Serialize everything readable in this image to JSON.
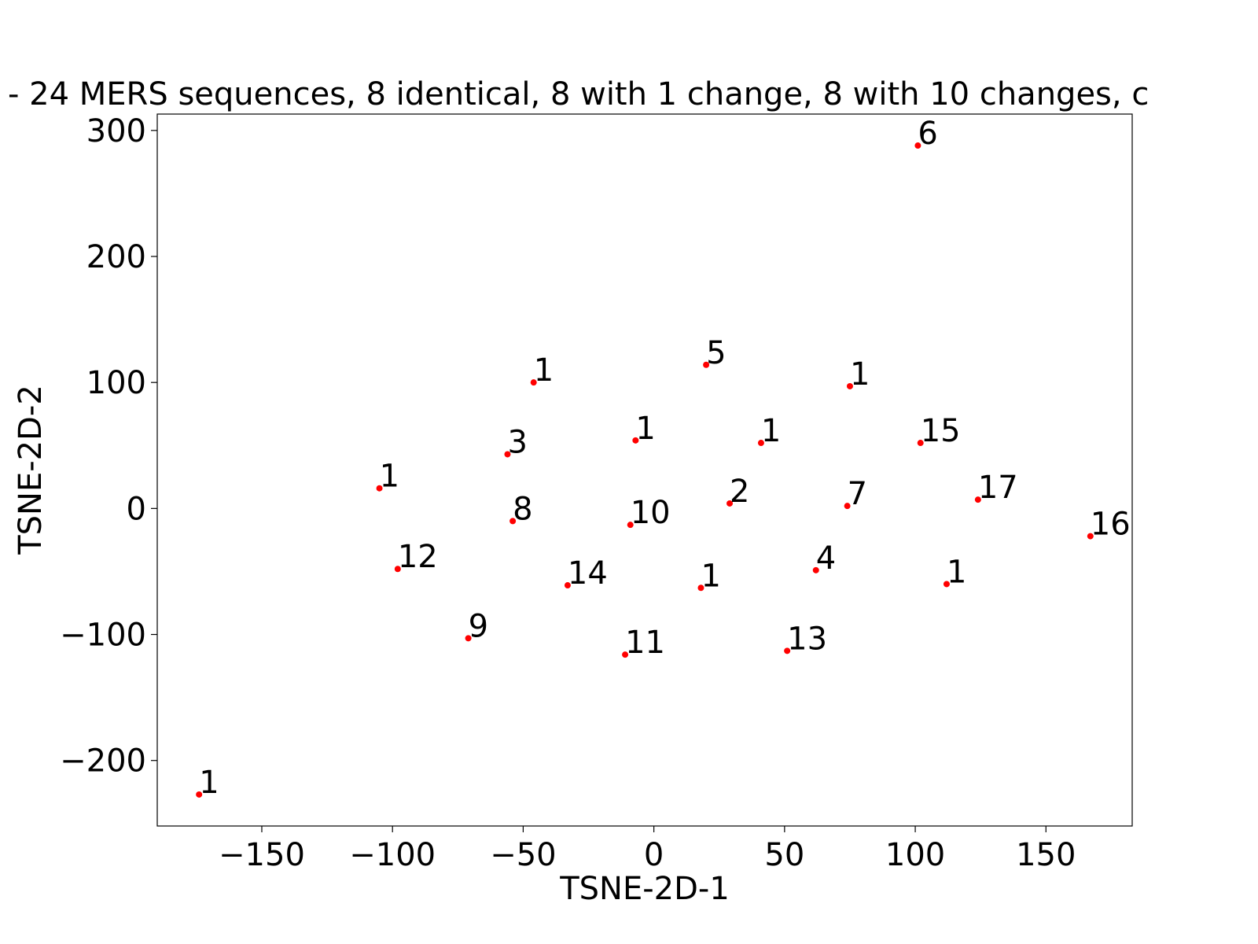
{
  "chart_data": {
    "type": "scatter",
    "title": "- 24 MERS sequences, 8 identical, 8 with 1 change, 8 with 10 changes, c",
    "xlabel": "TSNE-2D-1",
    "ylabel": "TSNE-2D-2",
    "xlim": [
      -190,
      183
    ],
    "ylim": [
      -252,
      313
    ],
    "xticks": [
      -150,
      -100,
      -50,
      0,
      50,
      100,
      150
    ],
    "yticks": [
      -200,
      -100,
      0,
      100,
      200,
      300
    ],
    "xtick_labels": [
      "−150",
      "−100",
      "−50",
      "0",
      "50",
      "100",
      "150"
    ],
    "ytick_labels": [
      "−200",
      "−100",
      "0",
      "100",
      "200",
      "300"
    ],
    "grid": false,
    "point_color": "#ff0000",
    "points": [
      {
        "x": 101,
        "y": 288,
        "label": "6"
      },
      {
        "x": 20,
        "y": 114,
        "label": "5"
      },
      {
        "x": -46,
        "y": 100,
        "label": "1"
      },
      {
        "x": 75,
        "y": 97,
        "label": "1"
      },
      {
        "x": -7,
        "y": 54,
        "label": "1"
      },
      {
        "x": 41,
        "y": 52,
        "label": "1"
      },
      {
        "x": 102,
        "y": 52,
        "label": "15"
      },
      {
        "x": -56,
        "y": 43,
        "label": "3"
      },
      {
        "x": -105,
        "y": 16,
        "label": "1"
      },
      {
        "x": 124,
        "y": 7,
        "label": "17"
      },
      {
        "x": 29,
        "y": 4,
        "label": "2"
      },
      {
        "x": 74,
        "y": 2,
        "label": "7"
      },
      {
        "x": -54,
        "y": -10,
        "label": "8"
      },
      {
        "x": -9,
        "y": -13,
        "label": "10"
      },
      {
        "x": 167,
        "y": -22,
        "label": "16"
      },
      {
        "x": -98,
        "y": -48,
        "label": "12"
      },
      {
        "x": 62,
        "y": -49,
        "label": "4"
      },
      {
        "x": -33,
        "y": -61,
        "label": "14"
      },
      {
        "x": 112,
        "y": -60,
        "label": "1"
      },
      {
        "x": 18,
        "y": -63,
        "label": "1"
      },
      {
        "x": -71,
        "y": -103,
        "label": "9"
      },
      {
        "x": 51,
        "y": -113,
        "label": "13"
      },
      {
        "x": -11,
        "y": -116,
        "label": "11"
      },
      {
        "x": -174,
        "y": -227,
        "label": "1"
      }
    ]
  }
}
